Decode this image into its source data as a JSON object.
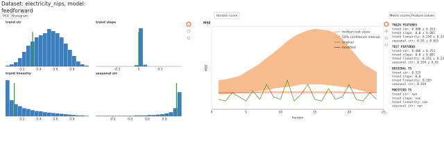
{
  "header": {
    "title": "Dataset: electricity_nips, model:",
    "model": "feedforward"
  },
  "left_buttons": [
    "PCA",
    "Histogram"
  ],
  "histograms": [
    {
      "title": "trend str",
      "color": "#3b7fbf",
      "highlight_color": "#2ca02c",
      "bins": [
        0,
        0.05,
        0.1,
        0.15,
        0.2,
        0.25,
        0.3,
        0.35,
        0.4,
        0.45,
        0.5,
        0.55,
        0.6,
        0.65,
        0.7,
        0.75,
        0.8,
        0.85,
        0.9,
        0.95,
        1
      ],
      "counts": [
        2,
        5,
        10,
        20,
        35,
        50,
        60,
        70,
        75,
        80,
        90,
        85,
        80,
        70,
        55,
        40,
        25,
        12,
        5,
        2
      ],
      "original": 0.325,
      "xlim": [
        0,
        1
      ],
      "xticks": [
        0.2,
        0.4,
        0.6,
        0.8
      ],
      "ylim": [
        0,
        100
      ]
    },
    {
      "title": "trend slope",
      "color": "#3b7fbf",
      "highlight_color": "#2ca02c",
      "bins": [
        -1,
        -0.9,
        -0.8,
        -0.7,
        -0.6,
        -0.5,
        -0.4,
        -0.3,
        -0.2,
        -0.1,
        0,
        0.1,
        0.2,
        0.3,
        0.4,
        0.5,
        0.6,
        0.7,
        0.8,
        0.9,
        1
      ],
      "counts": [
        0,
        0,
        0,
        0,
        0,
        0,
        0,
        0,
        0,
        3,
        92,
        4,
        0,
        0,
        0,
        0,
        0,
        0,
        0,
        0
      ],
      "original": 0,
      "xlim": [
        -1,
        1
      ],
      "xticks": [
        -0.5,
        0,
        0.5
      ],
      "ylim": [
        0,
        100
      ]
    },
    {
      "title": "trend linearity",
      "color": "#3b7fbf",
      "highlight_color": "#2ca02c",
      "bins": [
        0,
        0.05,
        0.1,
        0.15,
        0.2,
        0.25,
        0.3,
        0.35,
        0.4,
        0.45,
        0.5,
        0.55,
        0.6,
        0.65,
        0.7,
        0.75,
        0.8,
        0.85,
        0.9,
        0.95,
        1
      ],
      "counts": [
        90,
        40,
        30,
        25,
        20,
        18,
        15,
        13,
        12,
        10,
        9,
        8,
        7,
        6,
        5,
        4,
        3,
        2,
        2,
        1
      ],
      "original": 0.105,
      "xlim": [
        0,
        1
      ],
      "xticks": [
        0.2,
        0.4,
        0.6,
        0.8
      ],
      "ylim": [
        0,
        100
      ]
    },
    {
      "title": "seasonal str",
      "color": "#3b7fbf",
      "highlight_color": "#2ca02c",
      "bins": [
        0,
        0.05,
        0.1,
        0.15,
        0.2,
        0.25,
        0.3,
        0.35,
        0.4,
        0.45,
        0.5,
        0.55,
        0.6,
        0.65,
        0.7,
        0.75,
        0.8,
        0.85,
        0.9,
        0.95,
        1
      ],
      "counts": [
        1,
        1,
        1,
        1,
        1,
        1,
        1,
        1,
        1,
        2,
        2,
        2,
        3,
        3,
        4,
        5,
        7,
        10,
        20,
        60
      ],
      "original": 0.939,
      "xlim": [
        0,
        1
      ],
      "xticks": [
        0.2,
        0.4,
        0.6,
        0.8
      ],
      "ylim": [
        0,
        100
      ]
    }
  ],
  "mse_button": "Horizon score",
  "mse_chart": {
    "type": "line",
    "title": "MSE",
    "x_label": "horizon",
    "y_label": "MSE",
    "x": [
      1,
      2,
      3,
      4,
      5,
      6,
      7,
      8,
      9,
      10,
      11,
      12,
      13,
      14,
      15,
      16,
      17,
      18,
      19,
      20,
      21,
      22,
      23,
      24
    ],
    "xlim": [
      0,
      25
    ],
    "xticks": [
      0,
      5,
      10,
      15,
      20,
      25
    ],
    "ylim": [
      0,
      1
    ],
    "band": {
      "name": "50% confidence interval",
      "color": "#f7b27a",
      "upper": [
        0.35,
        0.36,
        0.38,
        0.4,
        0.45,
        0.5,
        0.55,
        0.62,
        0.68,
        0.75,
        0.82,
        0.88,
        0.92,
        0.95,
        0.97,
        0.96,
        0.95,
        0.92,
        0.85,
        0.75,
        0.65,
        0.55,
        0.5,
        0.45
      ],
      "lower": [
        0.18,
        0.18,
        0.19,
        0.2,
        0.2,
        0.21,
        0.22,
        0.23,
        0.25,
        0.26,
        0.27,
        0.28,
        0.3,
        0.3,
        0.3,
        0.3,
        0.29,
        0.28,
        0.27,
        0.26,
        0.24,
        0.22,
        0.2,
        0.2
      ]
    },
    "series": [
      {
        "name": "median test score",
        "color": "#f08030",
        "values": [
          0.2,
          0.2,
          0.2,
          0.2,
          0.2,
          0.2,
          0.21,
          0.21,
          0.21,
          0.21,
          0.21,
          0.21,
          0.21,
          0.21,
          0.21,
          0.21,
          0.21,
          0.21,
          0.21,
          0.2,
          0.2,
          0.2,
          0.2,
          0.2
        ]
      },
      {
        "name": "original",
        "color": "#5aa02c",
        "values": [
          0.12,
          0.1,
          0.2,
          0.15,
          0.1,
          0.22,
          0.12,
          0.3,
          0.15,
          0.12,
          0.35,
          0.1,
          0.18,
          0.3,
          0.12,
          0.1,
          0.25,
          0.12,
          0.15,
          0.3,
          0.12,
          0.1,
          0.2,
          0.12
        ]
      },
      {
        "name": "modified",
        "color": "#d62728",
        "values": [
          0.2,
          0.2,
          0.2,
          0.2,
          0.2,
          0.2,
          0.2,
          0.2,
          0.2,
          0.2,
          0.2,
          0.2,
          0.2,
          0.2,
          0.2,
          0.2,
          0.2,
          0.2,
          0.2,
          0.2,
          0.2,
          0.2,
          0.2,
          0.2
        ]
      }
    ]
  },
  "right_buttons": [
    "Metric scores",
    "Feature values"
  ],
  "features": [
    {
      "heading": "TRAIN FEATURES",
      "lines": [
        "trend str: 0.488 ± 0.253",
        "trend slope: 0.0 ± 0.001",
        "trend linearity: 0.258 ± 0.235",
        "seasonal str: 0.93 ± 0.015"
      ]
    },
    {
      "heading": "TEST FEATURES",
      "lines": [
        "trend str: 0.486 ± 0.253",
        "trend slope: 0.0 ± 0.001",
        "trend linearity: 0.251 ± 0.235",
        "seasonal str: 0.934 ± 0.01"
      ]
    },
    {
      "heading": "ORIGINAL TS",
      "lines": [
        "trend str: 0.325",
        "trend slope: 0.0",
        "trend linearity: 0.105",
        "seasonal str: 0.939"
      ]
    },
    {
      "heading": "MODIFIED TS",
      "lines": [
        "trend str: nan",
        "trend slope: nan",
        "trend linearity: nan",
        "seasonal str: nan"
      ]
    }
  ]
}
